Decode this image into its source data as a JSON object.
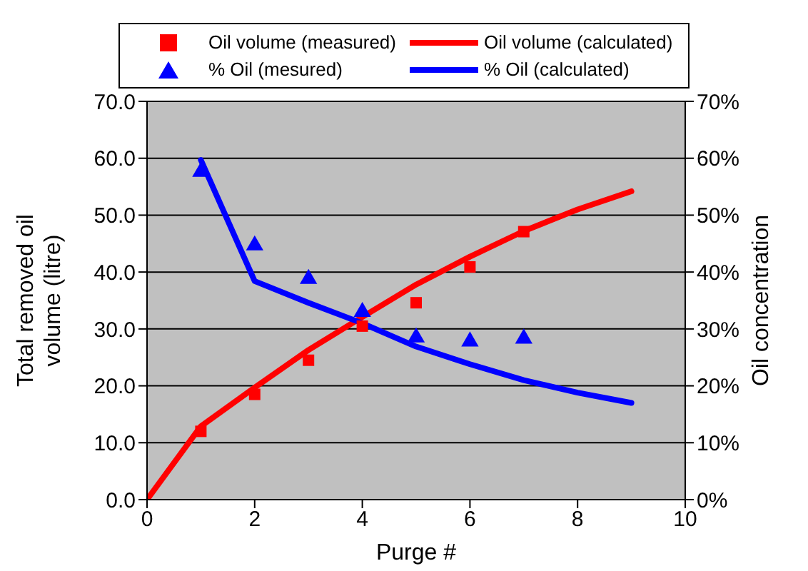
{
  "chart_data": {
    "type": "scatter",
    "xlabel": "Purge #",
    "ylabel": "Total removed oil volume (litre)",
    "y2label": "Oil concentration",
    "xlim": [
      0,
      10
    ],
    "xticks": [
      0,
      2,
      4,
      6,
      8,
      10
    ],
    "ylim": [
      0,
      70
    ],
    "yticks": [
      {
        "value": 0,
        "label": "0.0"
      },
      {
        "value": 10,
        "label": "10.0"
      },
      {
        "value": 20,
        "label": "20.0"
      },
      {
        "value": 30,
        "label": "30.0"
      },
      {
        "value": 40,
        "label": "40.0"
      },
      {
        "value": 50,
        "label": "50.0"
      },
      {
        "value": 60,
        "label": "60.0"
      },
      {
        "value": 70,
        "label": "70.0"
      }
    ],
    "y2lim": [
      0,
      70
    ],
    "y2ticks": [
      {
        "value": 0,
        "label": "0%"
      },
      {
        "value": 10,
        "label": "10%"
      },
      {
        "value": 20,
        "label": "20%"
      },
      {
        "value": 30,
        "label": "30%"
      },
      {
        "value": 40,
        "label": "40%"
      },
      {
        "value": 50,
        "label": "50%"
      },
      {
        "value": 60,
        "label": "60%"
      },
      {
        "value": 70,
        "label": "70%"
      }
    ],
    "grid": "y",
    "legend": "top",
    "series": [
      {
        "name": "Oil volume (measured)",
        "marker": "square",
        "color": "#ff0000",
        "x": [
          1,
          2,
          3,
          4,
          5,
          6,
          7
        ],
        "values": [
          12.0,
          18.5,
          24.5,
          30.5,
          34.6,
          40.9,
          47.1
        ]
      },
      {
        "name": "Oil volume (calculated)",
        "type": "line",
        "marker": "none",
        "line_style": "solid",
        "color": "#ff0000",
        "x": [
          0,
          1,
          2,
          3,
          4,
          5,
          6,
          7,
          8,
          9
        ],
        "values": [
          0,
          12.9,
          19.7,
          26.3,
          32.1,
          37.8,
          42.7,
          47.2,
          51.0,
          54.2
        ]
      },
      {
        "name": "% Oil (mesured)",
        "marker": "triangle",
        "axis": "y2",
        "color": "#0000ff",
        "x": [
          1,
          2,
          3,
          4,
          5,
          6,
          7
        ],
        "values": [
          57.6,
          44.7,
          38.8,
          33.0,
          28.5,
          27.8,
          28.3
        ]
      },
      {
        "name": "% Oil (calculated)",
        "type": "line",
        "marker": "none",
        "line_style": "solid",
        "axis": "y2",
        "color": "#0000ff",
        "x": [
          1,
          2,
          3,
          4,
          5,
          6,
          7,
          8,
          9
        ],
        "values": [
          59.7,
          38.4,
          34.6,
          31.0,
          26.9,
          23.8,
          21.0,
          18.8,
          17.0
        ]
      }
    ]
  }
}
